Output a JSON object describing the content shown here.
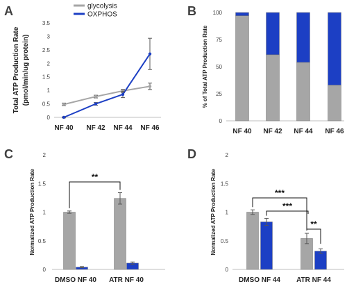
{
  "colors": {
    "glycolysis": "#a6a6a6",
    "oxphos": "#1c3fc4",
    "axis": "#bfbfbf",
    "error": "#555555"
  },
  "chart_data": [
    {
      "panel": "A",
      "type": "line",
      "categories": [
        "NF 40",
        "NF 42",
        "NF 44",
        "NF 46"
      ],
      "ylabel": "Total ATP Production Rate (pmol/min/ug protein)",
      "ylim": [
        0,
        3.5
      ],
      "yticks": [
        "0",
        "0.5",
        "1",
        "1.5",
        "2",
        "2.5",
        "3",
        "3.5"
      ],
      "legend": {
        "position": "top-left"
      },
      "series": [
        {
          "name": "glycolysis",
          "values": [
            0.48,
            0.77,
            0.98,
            1.15
          ],
          "errors": [
            0.05,
            0.05,
            0.06,
            0.12
          ]
        },
        {
          "name": "OXPHOS",
          "values": [
            0.0,
            0.5,
            0.85,
            2.35
          ],
          "errors": [
            0.02,
            0.05,
            0.12,
            0.58
          ]
        }
      ]
    },
    {
      "panel": "B",
      "type": "bar",
      "stacked": true,
      "categories": [
        "NF 40",
        "NF 42",
        "NF 44",
        "NF 46"
      ],
      "ylabel": "% of Total ATP Production Rate",
      "ylim": [
        0,
        100
      ],
      "yticks": [
        "0",
        "25",
        "50",
        "75",
        "100"
      ],
      "series": [
        {
          "name": "glycolysis",
          "values": [
            97,
            61,
            54,
            33
          ]
        },
        {
          "name": "OXPHOS",
          "values": [
            3,
            39,
            46,
            67
          ]
        }
      ]
    },
    {
      "panel": "C",
      "type": "bar",
      "categories": [
        "DMSO NF 40",
        "ATR NF 40"
      ],
      "ylabel": "Normalized ATP Production Rate",
      "ylim": [
        0,
        2
      ],
      "yticks": [
        "0",
        "0.5",
        "1",
        "1.5",
        "2"
      ],
      "series": [
        {
          "name": "glycolysis",
          "values": [
            1.0,
            1.24
          ],
          "errors": [
            0.02,
            0.1
          ]
        },
        {
          "name": "OXPHOS",
          "values": [
            0.04,
            0.11
          ],
          "errors": [
            0.01,
            0.02
          ]
        }
      ],
      "annotations": [
        {
          "text": "**",
          "from": "DMSO NF 40 glycolysis",
          "to": "ATR NF 40 glycolysis"
        }
      ]
    },
    {
      "panel": "D",
      "type": "bar",
      "categories": [
        "DMSO NF 44",
        "ATR NF 44"
      ],
      "ylabel": "Normalized ATP Production Rate",
      "ylim": [
        0,
        2
      ],
      "yticks": [
        "0",
        "0.5",
        "1",
        "1.5",
        "2"
      ],
      "series": [
        {
          "name": "glycolysis",
          "values": [
            1.0,
            0.54
          ],
          "errors": [
            0.04,
            0.09
          ]
        },
        {
          "name": "OXPHOS",
          "values": [
            0.83,
            0.32
          ],
          "errors": [
            0.06,
            0.04
          ]
        }
      ],
      "annotations": [
        {
          "text": "***",
          "from": "DMSO NF 44 glycolysis",
          "to": "ATR NF 44 glycolysis"
        },
        {
          "text": "***",
          "from": "DMSO NF 44 OXPHOS",
          "to": "ATR NF 44 glycolysis"
        },
        {
          "text": "**",
          "from": "ATR NF 44 glycolysis",
          "to": "ATR NF 44 OXPHOS"
        }
      ]
    }
  ]
}
